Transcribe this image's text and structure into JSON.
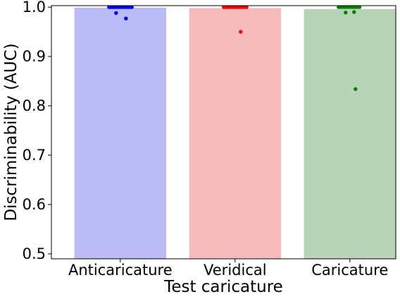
{
  "chart_data": {
    "type": "bar",
    "categories": [
      "Anticaricature",
      "Veridical",
      "Caricature"
    ],
    "values": [
      0.999,
      0.998,
      0.996
    ],
    "bar_colors": [
      "#bbbbf5",
      "#f5bbbb",
      "#b8d4b8"
    ],
    "point_colors": [
      "#0000ff",
      "#ff0000",
      "#008000"
    ],
    "points": [
      [
        1.0,
        1.0,
        1.0,
        1.0,
        1.0,
        1.0,
        1.0,
        1.0,
        1.0,
        1.0,
        1.0,
        1.0,
        1.0,
        0.988,
        0.977
      ],
      [
        1.0,
        1.0,
        1.0,
        1.0,
        1.0,
        1.0,
        1.0,
        1.0,
        1.0,
        1.0,
        1.0,
        1.0,
        1.0,
        1.0,
        0.95
      ],
      [
        1.0,
        1.0,
        1.0,
        1.0,
        1.0,
        1.0,
        1.0,
        1.0,
        1.0,
        1.0,
        1.0,
        1.0,
        0.99,
        0.989,
        0.834
      ]
    ],
    "xlabel": "Test caricature",
    "ylabel": "Discriminability (AUC)",
    "ylim": [
      0.49,
      1.003
    ],
    "yticks": [
      0.5,
      0.6,
      0.7,
      0.8,
      0.9,
      1.0
    ],
    "ytick_labels": [
      "0.5",
      "0.6",
      "0.7",
      "0.8",
      "0.9",
      "1.0"
    ],
    "grid": false
  }
}
